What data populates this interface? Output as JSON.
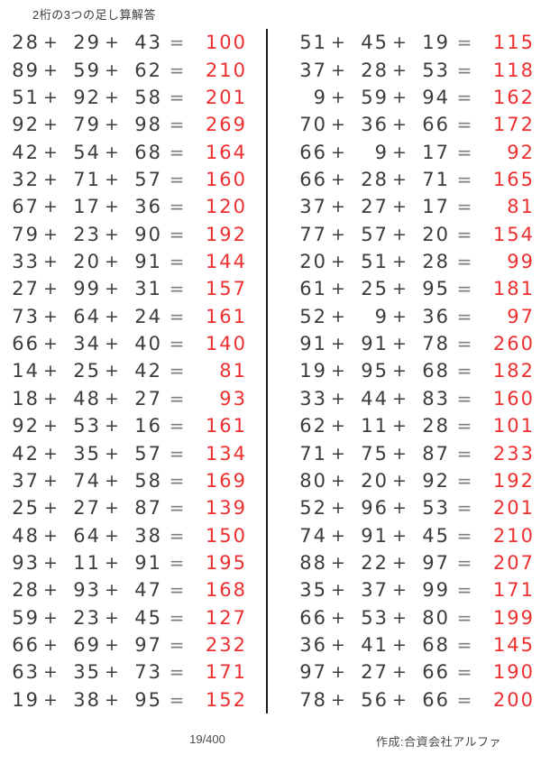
{
  "title": "2桁の3つの足し算解答",
  "page_number": "19/400",
  "credit": "作成:合資会社アルファ",
  "operators": {
    "plus": "+",
    "equals": "="
  },
  "colors": {
    "answer_red": "#ee2f2f",
    "number_dark": "#3c3c3c",
    "equals_gray": "#7d7d7d",
    "divider_black": "#1a1a1a"
  },
  "columns": [
    {
      "rows": [
        {
          "a": 28,
          "b": 29,
          "c": 43,
          "sum": 100
        },
        {
          "a": 89,
          "b": 59,
          "c": 62,
          "sum": 210
        },
        {
          "a": 51,
          "b": 92,
          "c": 58,
          "sum": 201
        },
        {
          "a": 92,
          "b": 79,
          "c": 98,
          "sum": 269
        },
        {
          "a": 42,
          "b": 54,
          "c": 68,
          "sum": 164
        },
        {
          "a": 32,
          "b": 71,
          "c": 57,
          "sum": 160
        },
        {
          "a": 67,
          "b": 17,
          "c": 36,
          "sum": 120
        },
        {
          "a": 79,
          "b": 23,
          "c": 90,
          "sum": 192
        },
        {
          "a": 33,
          "b": 20,
          "c": 91,
          "sum": 144
        },
        {
          "a": 27,
          "b": 99,
          "c": 31,
          "sum": 157
        },
        {
          "a": 73,
          "b": 64,
          "c": 24,
          "sum": 161
        },
        {
          "a": 66,
          "b": 34,
          "c": 40,
          "sum": 140
        },
        {
          "a": 14,
          "b": 25,
          "c": 42,
          "sum": 81
        },
        {
          "a": 18,
          "b": 48,
          "c": 27,
          "sum": 93
        },
        {
          "a": 92,
          "b": 53,
          "c": 16,
          "sum": 161
        },
        {
          "a": 42,
          "b": 35,
          "c": 57,
          "sum": 134
        },
        {
          "a": 37,
          "b": 74,
          "c": 58,
          "sum": 169
        },
        {
          "a": 25,
          "b": 27,
          "c": 87,
          "sum": 139
        },
        {
          "a": 48,
          "b": 64,
          "c": 38,
          "sum": 150
        },
        {
          "a": 93,
          "b": 11,
          "c": 91,
          "sum": 195
        },
        {
          "a": 28,
          "b": 93,
          "c": 47,
          "sum": 168
        },
        {
          "a": 59,
          "b": 23,
          "c": 45,
          "sum": 127
        },
        {
          "a": 66,
          "b": 69,
          "c": 97,
          "sum": 232
        },
        {
          "a": 63,
          "b": 35,
          "c": 73,
          "sum": 171
        },
        {
          "a": 19,
          "b": 38,
          "c": 95,
          "sum": 152
        }
      ]
    },
    {
      "rows": [
        {
          "a": 51,
          "b": 45,
          "c": 19,
          "sum": 115
        },
        {
          "a": 37,
          "b": 28,
          "c": 53,
          "sum": 118
        },
        {
          "a": 9,
          "b": 59,
          "c": 94,
          "sum": 162
        },
        {
          "a": 70,
          "b": 36,
          "c": 66,
          "sum": 172
        },
        {
          "a": 66,
          "b": 9,
          "c": 17,
          "sum": 92
        },
        {
          "a": 66,
          "b": 28,
          "c": 71,
          "sum": 165
        },
        {
          "a": 37,
          "b": 27,
          "c": 17,
          "sum": 81
        },
        {
          "a": 77,
          "b": 57,
          "c": 20,
          "sum": 154
        },
        {
          "a": 20,
          "b": 51,
          "c": 28,
          "sum": 99
        },
        {
          "a": 61,
          "b": 25,
          "c": 95,
          "sum": 181
        },
        {
          "a": 52,
          "b": 9,
          "c": 36,
          "sum": 97
        },
        {
          "a": 91,
          "b": 91,
          "c": 78,
          "sum": 260
        },
        {
          "a": 19,
          "b": 95,
          "c": 68,
          "sum": 182
        },
        {
          "a": 33,
          "b": 44,
          "c": 83,
          "sum": 160
        },
        {
          "a": 62,
          "b": 11,
          "c": 28,
          "sum": 101
        },
        {
          "a": 71,
          "b": 75,
          "c": 87,
          "sum": 233
        },
        {
          "a": 80,
          "b": 20,
          "c": 92,
          "sum": 192
        },
        {
          "a": 52,
          "b": 96,
          "c": 53,
          "sum": 201
        },
        {
          "a": 74,
          "b": 91,
          "c": 45,
          "sum": 210
        },
        {
          "a": 88,
          "b": 22,
          "c": 97,
          "sum": 207
        },
        {
          "a": 35,
          "b": 37,
          "c": 99,
          "sum": 171
        },
        {
          "a": 66,
          "b": 53,
          "c": 80,
          "sum": 199
        },
        {
          "a": 36,
          "b": 41,
          "c": 68,
          "sum": 145
        },
        {
          "a": 97,
          "b": 27,
          "c": 66,
          "sum": 190
        },
        {
          "a": 78,
          "b": 56,
          "c": 66,
          "sum": 200
        }
      ]
    }
  ]
}
